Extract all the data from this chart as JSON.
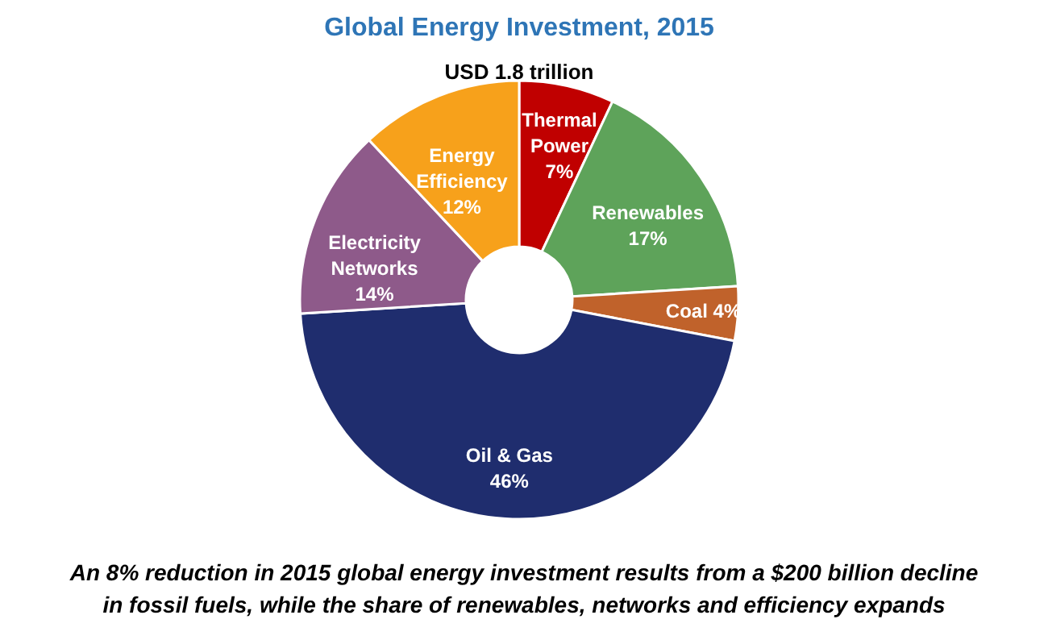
{
  "chart_data": {
    "type": "donut",
    "title": "Global Energy Investment, 2015",
    "subtitle": "USD 1.8 trillion",
    "categories": [
      "Thermal Power",
      "Renewables",
      "Coal",
      "Oil & Gas",
      "Electricity Networks",
      "Energy Efficiency"
    ],
    "values": [
      7,
      17,
      4,
      46,
      14,
      12
    ],
    "value_labels": [
      "7%",
      "17%",
      "4%",
      "46%",
      "14%",
      "12%"
    ],
    "colors": [
      "#c00000",
      "#5ea35a",
      "#c0622b",
      "#1f2d6e",
      "#8e5a8a",
      "#f7a11b"
    ],
    "annotations": [
      "An 8% reduction in 2015 global energy investment results from a $200 billion decline in fossil fuels, while the share of renewables, networks and efficiency expands"
    ]
  }
}
